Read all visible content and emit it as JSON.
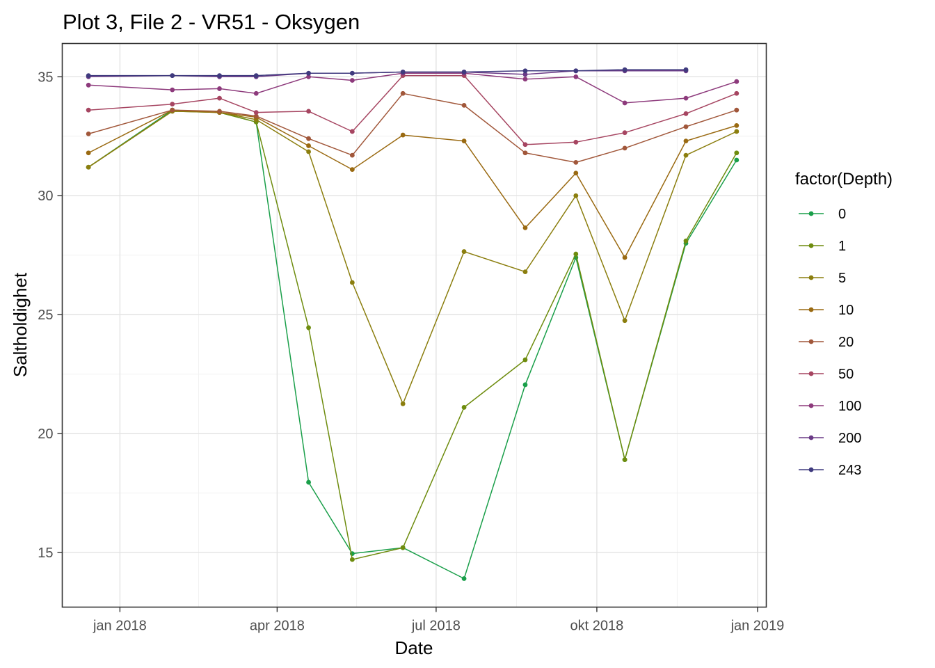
{
  "chart_data": {
    "type": "line",
    "title": "Plot 3, File 2 - VR51  -  Oksygen",
    "xlabel": "Date",
    "ylabel": "Saltholdighet",
    "ylim": [
      12.7,
      36.4
    ],
    "xlim": [
      "2017-11-29",
      "2019-01-06"
    ],
    "x_ticks": [
      {
        "date": "2018-01-01",
        "label": "jan 2018"
      },
      {
        "date": "2018-04-01",
        "label": "apr 2018"
      },
      {
        "date": "2018-07-01",
        "label": "jul 2018"
      },
      {
        "date": "2018-10-01",
        "label": "okt 2018"
      },
      {
        "date": "2019-01-01",
        "label": "jan 2019"
      }
    ],
    "y_ticks": [
      15,
      20,
      25,
      30,
      35
    ],
    "grid": true,
    "legend": {
      "title": "factor(Depth)",
      "position": "right"
    },
    "series": [
      {
        "name": "0",
        "color": "#1a9f4a",
        "points": [
          [
            "2017-12-14",
            31.2
          ],
          [
            "2018-01-31",
            33.6
          ],
          [
            "2018-02-27",
            33.5
          ],
          [
            "2018-03-20",
            33.1
          ],
          [
            "2018-04-19",
            17.95
          ],
          [
            "2018-05-14",
            14.95
          ],
          [
            "2018-06-12",
            15.2
          ],
          [
            "2018-07-17",
            13.9
          ],
          [
            "2018-08-21",
            22.05
          ],
          [
            "2018-09-19",
            27.4
          ],
          [
            "2018-10-17",
            18.9
          ],
          [
            "2018-11-21",
            28.0
          ],
          [
            "2018-12-20",
            31.5
          ]
        ]
      },
      {
        "name": "1",
        "color": "#6e8c0e",
        "points": [
          [
            "2017-12-14",
            31.2
          ],
          [
            "2018-01-31",
            33.55
          ],
          [
            "2018-02-27",
            33.5
          ],
          [
            "2018-03-20",
            33.1
          ],
          [
            "2018-04-19",
            24.45
          ],
          [
            "2018-05-14",
            14.7
          ],
          [
            "2018-06-12",
            15.2
          ],
          [
            "2018-07-17",
            21.1
          ],
          [
            "2018-08-21",
            23.1
          ],
          [
            "2018-09-19",
            27.55
          ],
          [
            "2018-10-17",
            18.9
          ],
          [
            "2018-11-21",
            28.1
          ],
          [
            "2018-12-20",
            31.8
          ]
        ]
      },
      {
        "name": "5",
        "color": "#8b7e0e",
        "points": [
          [
            "2017-12-14",
            31.2
          ],
          [
            "2018-01-31",
            33.55
          ],
          [
            "2018-02-27",
            33.5
          ],
          [
            "2018-03-20",
            33.2
          ],
          [
            "2018-04-19",
            31.85
          ],
          [
            "2018-05-14",
            26.35
          ],
          [
            "2018-06-12",
            21.25
          ],
          [
            "2018-07-17",
            27.65
          ],
          [
            "2018-08-21",
            26.8
          ],
          [
            "2018-09-19",
            30.0
          ],
          [
            "2018-10-17",
            24.75
          ],
          [
            "2018-11-21",
            31.7
          ],
          [
            "2018-12-20",
            32.7
          ]
        ]
      },
      {
        "name": "10",
        "color": "#9a6a12",
        "points": [
          [
            "2017-12-14",
            31.8
          ],
          [
            "2018-01-31",
            33.6
          ],
          [
            "2018-02-27",
            33.5
          ],
          [
            "2018-03-20",
            33.3
          ],
          [
            "2018-04-19",
            32.1
          ],
          [
            "2018-05-14",
            31.1
          ],
          [
            "2018-06-12",
            32.55
          ],
          [
            "2018-07-17",
            32.3
          ],
          [
            "2018-08-21",
            28.65
          ],
          [
            "2018-09-19",
            30.95
          ],
          [
            "2018-10-17",
            27.4
          ],
          [
            "2018-11-21",
            32.3
          ],
          [
            "2018-12-20",
            32.95
          ]
        ]
      },
      {
        "name": "20",
        "color": "#a1573a",
        "points": [
          [
            "2017-12-14",
            32.6
          ],
          [
            "2018-01-31",
            33.6
          ],
          [
            "2018-02-27",
            33.55
          ],
          [
            "2018-03-20",
            33.35
          ],
          [
            "2018-04-19",
            32.4
          ],
          [
            "2018-05-14",
            31.7
          ],
          [
            "2018-06-12",
            34.3
          ],
          [
            "2018-07-17",
            33.8
          ],
          [
            "2018-08-21",
            31.8
          ],
          [
            "2018-09-19",
            31.4
          ],
          [
            "2018-10-17",
            32.0
          ],
          [
            "2018-11-21",
            32.9
          ],
          [
            "2018-12-20",
            33.6
          ]
        ]
      },
      {
        "name": "50",
        "color": "#a64561",
        "points": [
          [
            "2017-12-14",
            33.6
          ],
          [
            "2018-01-31",
            33.85
          ],
          [
            "2018-02-27",
            34.1
          ],
          [
            "2018-03-20",
            33.5
          ],
          [
            "2018-04-19",
            33.55
          ],
          [
            "2018-05-14",
            32.7
          ],
          [
            "2018-06-12",
            35.05
          ],
          [
            "2018-07-17",
            35.05
          ],
          [
            "2018-08-21",
            32.15
          ],
          [
            "2018-09-19",
            32.25
          ],
          [
            "2018-10-17",
            32.65
          ],
          [
            "2018-11-21",
            33.45
          ],
          [
            "2018-12-20",
            34.3
          ]
        ]
      },
      {
        "name": "100",
        "color": "#8d3a7c",
        "points": [
          [
            "2017-12-14",
            34.65
          ],
          [
            "2018-01-31",
            34.45
          ],
          [
            "2018-02-27",
            34.5
          ],
          [
            "2018-03-20",
            34.3
          ],
          [
            "2018-04-19",
            35.0
          ],
          [
            "2018-05-14",
            34.85
          ],
          [
            "2018-06-12",
            35.15
          ],
          [
            "2018-07-17",
            35.15
          ],
          [
            "2018-08-21",
            34.9
          ],
          [
            "2018-09-19",
            35.0
          ],
          [
            "2018-10-17",
            33.9
          ],
          [
            "2018-11-21",
            34.1
          ],
          [
            "2018-12-20",
            34.8
          ]
        ]
      },
      {
        "name": "200",
        "color": "#6a3a86",
        "points": [
          [
            "2017-12-14",
            35.0
          ],
          [
            "2018-01-31",
            35.05
          ],
          [
            "2018-02-27",
            35.0
          ],
          [
            "2018-03-20",
            35.0
          ],
          [
            "2018-04-19",
            35.15
          ],
          [
            "2018-05-14",
            35.15
          ],
          [
            "2018-06-12",
            35.2
          ],
          [
            "2018-07-17",
            35.2
          ],
          [
            "2018-08-21",
            35.1
          ],
          [
            "2018-09-19",
            35.25
          ],
          [
            "2018-10-17",
            35.25
          ],
          [
            "2018-11-21",
            35.25
          ]
        ]
      },
      {
        "name": "243",
        "color": "#3f3a7e",
        "points": [
          [
            "2017-12-14",
            35.05
          ],
          [
            "2018-01-31",
            35.05
          ],
          [
            "2018-02-27",
            35.05
          ],
          [
            "2018-03-20",
            35.05
          ],
          [
            "2018-04-19",
            35.15
          ],
          [
            "2018-05-14",
            35.15
          ],
          [
            "2018-06-12",
            35.2
          ],
          [
            "2018-07-17",
            35.2
          ],
          [
            "2018-08-21",
            35.25
          ],
          [
            "2018-09-19",
            35.25
          ],
          [
            "2018-10-17",
            35.3
          ],
          [
            "2018-11-21",
            35.3
          ]
        ]
      }
    ]
  }
}
